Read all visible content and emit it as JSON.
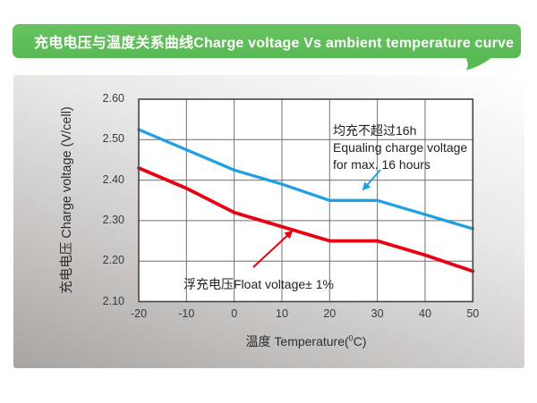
{
  "header": {
    "title": "充电电压与温度关系曲线Charge voltage Vs ambient temperature curve",
    "banner_color": "#5dbe58"
  },
  "icons": {
    "banner_tail": "speech-bubble-tail",
    "equalize_arrow": "arrow-pointing-down-left",
    "float_arrow": "arrow-pointing-up-right"
  },
  "chart_data": {
    "type": "line",
    "title": "充电电压与温度关系曲线Charge voltage Vs ambient temperature curve",
    "x": [
      -20,
      -10,
      0,
      10,
      20,
      30,
      40,
      50
    ],
    "series": [
      {
        "name": "equalizing-charge-voltage",
        "color": "#1fa0e2",
        "values": [
          2.525,
          2.475,
          2.425,
          2.39,
          2.35,
          2.35,
          2.315,
          2.28
        ],
        "annotation_line1": "均充不超过16h",
        "annotation_line2": "Equaling charge voltage",
        "annotation_line3": "for max. 16 hours"
      },
      {
        "name": "float-voltage",
        "color": "#e60012",
        "values": [
          2.43,
          2.38,
          2.32,
          2.285,
          2.25,
          2.25,
          2.215,
          2.175
        ],
        "annotation": "浮充电压Float voltage± 1%"
      }
    ],
    "xlabel_prefix": "温度 Temperature(",
    "xlabel_sup": "0",
    "xlabel_suffix": "C)",
    "ylabel": "充电电压 Charge voltage (V/cell)",
    "xlim": [
      -20,
      50
    ],
    "ylim": [
      2.1,
      2.6
    ],
    "xticks": [
      "-20",
      "-10",
      "0",
      "10",
      "20",
      "30",
      "40",
      "50"
    ],
    "yticks": [
      "2.60",
      "2.50",
      "2.40",
      "2.30",
      "2.20",
      "2.10"
    ],
    "grid": true,
    "legend": "none"
  }
}
